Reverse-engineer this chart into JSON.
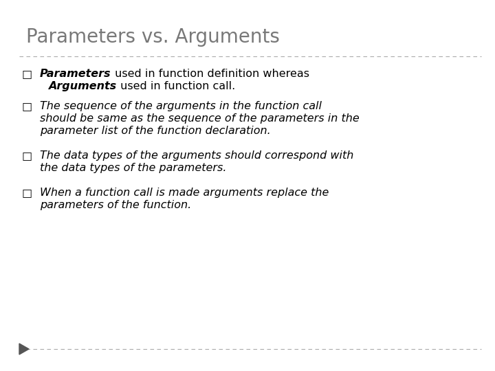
{
  "title": "Parameters vs. Arguments",
  "title_color": "#787878",
  "title_fontsize": 20,
  "background_color": "#ffffff",
  "separator_color": "#aaaaaa",
  "bullet_color": "#000000",
  "body_fontsize": 11.5,
  "bullet_symbol": "□",
  "b1_bold": "Parameters",
  "b1_normal": " used in function definition whereas",
  "b1_indent_bold": "Arguments",
  "b1_indent_normal": " used in function call.",
  "b2_lines": [
    "The sequence of the arguments in the function call",
    "should be same as the sequence of the parameters in the",
    "parameter list of the function declaration."
  ],
  "b3_lines": [
    "The data types of the arguments should correspond with",
    "the data types of the parameters."
  ],
  "b4_lines": [
    "When a function call is made arguments replace the",
    "parameters of the function."
  ],
  "triangle_color": "#555555"
}
